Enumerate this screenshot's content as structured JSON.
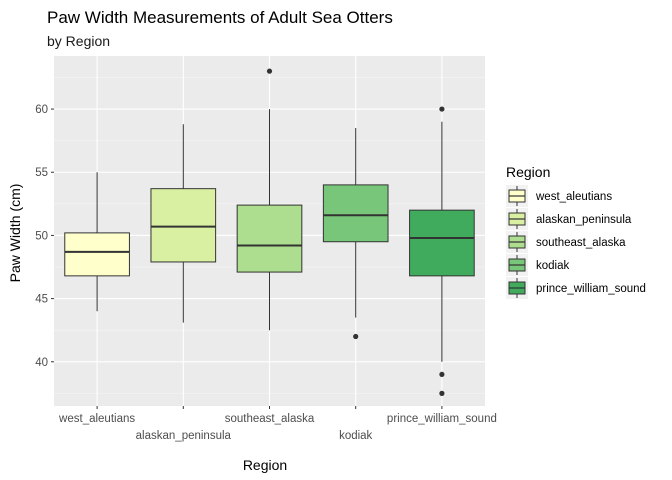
{
  "chart_data": {
    "type": "boxplot",
    "title": "Paw Width Measurements of Adult Sea Otters",
    "subtitle": "by Region",
    "xlabel": "Region",
    "ylabel": "Paw Width (cm)",
    "ylim": [
      36.5,
      64.2
    ],
    "y_ticks": [
      40,
      45,
      50,
      55,
      60
    ],
    "grid": true,
    "legend_title": "Region",
    "legend_position": "right",
    "categories": [
      "west_aleutians",
      "alaskan_peninsula",
      "southeast_alaska",
      "kodiak",
      "prince_william_sound"
    ],
    "series": [
      {
        "name": "west_aleutians",
        "color": "#ffffcc",
        "min": 44.0,
        "q1": 46.8,
        "median": 48.7,
        "q3": 50.2,
        "max": 55.0,
        "outliers": []
      },
      {
        "name": "alaskan_peninsula",
        "color": "#d9f0a3",
        "min": 43.1,
        "q1": 47.9,
        "median": 50.7,
        "q3": 53.7,
        "max": 58.8,
        "outliers": []
      },
      {
        "name": "southeast_alaska",
        "color": "#addd8e",
        "min": 42.5,
        "q1": 47.1,
        "median": 49.2,
        "q3": 52.4,
        "max": 60.0,
        "outliers": [
          63.0
        ]
      },
      {
        "name": "kodiak",
        "color": "#78c679",
        "min": 43.5,
        "q1": 49.5,
        "median": 51.6,
        "q3": 54.0,
        "max": 58.5,
        "outliers": [
          42.0
        ]
      },
      {
        "name": "prince_william_sound",
        "color": "#41ab5d",
        "min": 40.0,
        "q1": 46.8,
        "median": 49.8,
        "q3": 52.0,
        "max": 59.0,
        "outliers": [
          60.0,
          39.0,
          37.5
        ]
      }
    ]
  }
}
